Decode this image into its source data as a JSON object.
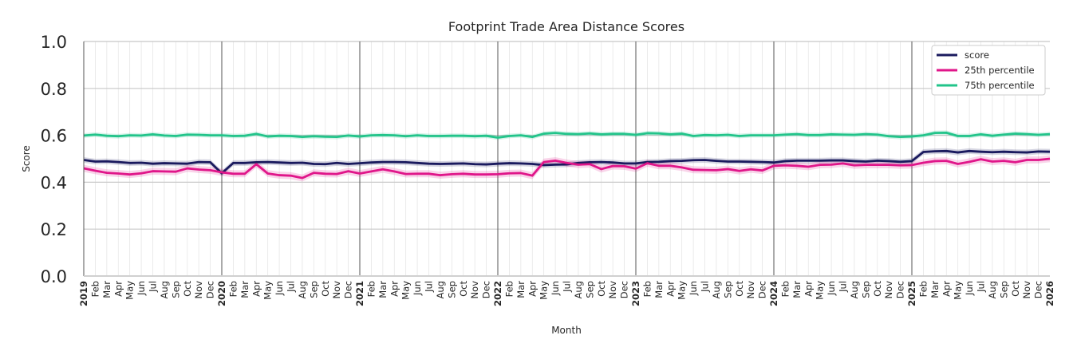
{
  "chart_data": {
    "type": "line",
    "title": "Footprint Trade Area Distance Scores",
    "xlabel": "Month",
    "ylabel": "Score",
    "ylim": [
      0.0,
      1.0
    ],
    "yticks": [
      "0.0",
      "0.2",
      "0.4",
      "0.6",
      "0.8",
      "1.0"
    ],
    "x_range": [
      "2019-01",
      "2026-01"
    ],
    "month_labels": [
      "Feb",
      "Mar",
      "Apr",
      "May",
      "Jun",
      "Jul",
      "Aug",
      "Sep",
      "Oct",
      "Nov",
      "Dec"
    ],
    "year_labels": [
      "2019",
      "2020",
      "2021",
      "2022",
      "2023",
      "2024",
      "2025",
      "2026"
    ],
    "legend_position": "top-right",
    "grid": true,
    "colors": {
      "score": "#1a1a5e",
      "p25": "#e0168a",
      "p75": "#22c48a"
    },
    "series": [
      {
        "name": "score",
        "values": [
          0.495,
          0.488,
          0.489,
          0.486,
          0.482,
          0.483,
          0.479,
          0.481,
          0.48,
          0.479,
          0.486,
          0.485,
          0.438,
          0.482,
          0.482,
          0.485,
          0.486,
          0.484,
          0.482,
          0.483,
          0.478,
          0.477,
          0.482,
          0.478,
          0.481,
          0.484,
          0.486,
          0.486,
          0.485,
          0.482,
          0.479,
          0.478,
          0.479,
          0.48,
          0.477,
          0.476,
          0.479,
          0.481,
          0.48,
          0.478,
          0.473,
          0.475,
          0.476,
          0.482,
          0.485,
          0.486,
          0.484,
          0.48,
          0.48,
          0.486,
          0.487,
          0.49,
          0.491,
          0.494,
          0.495,
          0.491,
          0.488,
          0.488,
          0.487,
          0.486,
          0.484,
          0.49,
          0.492,
          0.492,
          0.492,
          0.493,
          0.493,
          0.49,
          0.488,
          0.492,
          0.49,
          0.487,
          0.49,
          0.529,
          0.532,
          0.533,
          0.527,
          0.533,
          0.53,
          0.528,
          0.53,
          0.528,
          0.527,
          0.531,
          0.53
        ]
      },
      {
        "name": "25th percentile",
        "values": [
          0.459,
          0.449,
          0.44,
          0.437,
          0.433,
          0.438,
          0.447,
          0.446,
          0.445,
          0.459,
          0.454,
          0.451,
          0.442,
          0.436,
          0.436,
          0.477,
          0.437,
          0.43,
          0.428,
          0.418,
          0.44,
          0.436,
          0.435,
          0.447,
          0.437,
          0.446,
          0.455,
          0.446,
          0.435,
          0.436,
          0.436,
          0.43,
          0.434,
          0.436,
          0.433,
          0.433,
          0.434,
          0.438,
          0.439,
          0.428,
          0.486,
          0.492,
          0.482,
          0.475,
          0.477,
          0.456,
          0.469,
          0.468,
          0.458,
          0.481,
          0.47,
          0.47,
          0.463,
          0.453,
          0.452,
          0.451,
          0.456,
          0.448,
          0.455,
          0.45,
          0.47,
          0.472,
          0.47,
          0.466,
          0.474,
          0.475,
          0.48,
          0.472,
          0.474,
          0.474,
          0.474,
          0.472,
          0.473,
          0.483,
          0.49,
          0.491,
          0.478,
          0.487,
          0.498,
          0.488,
          0.491,
          0.485,
          0.495,
          0.495,
          0.5
        ]
      },
      {
        "name": "75th percentile",
        "values": [
          0.599,
          0.603,
          0.598,
          0.596,
          0.6,
          0.599,
          0.604,
          0.599,
          0.597,
          0.603,
          0.602,
          0.6,
          0.6,
          0.597,
          0.598,
          0.606,
          0.595,
          0.598,
          0.597,
          0.593,
          0.596,
          0.594,
          0.593,
          0.599,
          0.595,
          0.6,
          0.601,
          0.6,
          0.596,
          0.6,
          0.597,
          0.597,
          0.598,
          0.598,
          0.596,
          0.598,
          0.59,
          0.597,
          0.6,
          0.593,
          0.607,
          0.61,
          0.606,
          0.605,
          0.608,
          0.604,
          0.606,
          0.606,
          0.602,
          0.609,
          0.608,
          0.604,
          0.607,
          0.597,
          0.601,
          0.6,
          0.602,
          0.597,
          0.6,
          0.6,
          0.6,
          0.603,
          0.605,
          0.601,
          0.601,
          0.604,
          0.603,
          0.602,
          0.605,
          0.603,
          0.596,
          0.593,
          0.595,
          0.6,
          0.61,
          0.611,
          0.597,
          0.597,
          0.604,
          0.598,
          0.603,
          0.607,
          0.605,
          0.602,
          0.605
        ]
      }
    ],
    "ci_halfwidth": {
      "score": 0.012,
      "25th percentile": 0.015,
      "75th percentile": 0.01
    }
  }
}
